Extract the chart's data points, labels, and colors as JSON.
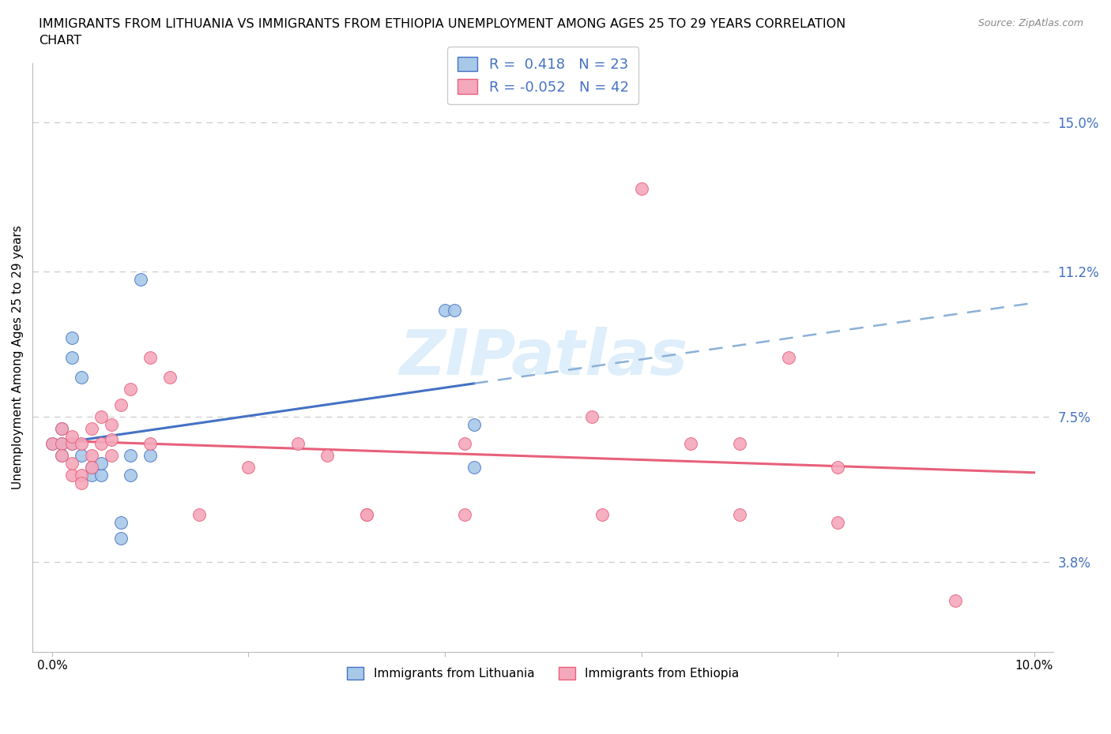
{
  "title": "IMMIGRANTS FROM LITHUANIA VS IMMIGRANTS FROM ETHIOPIA UNEMPLOYMENT AMONG AGES 25 TO 29 YEARS CORRELATION\nCHART",
  "source": "Source: ZipAtlas.com",
  "ylabel": "Unemployment Among Ages 25 to 29 years",
  "xlim": [
    -0.002,
    0.102
  ],
  "ylim": [
    0.015,
    0.165
  ],
  "ytick_vals": [
    0.038,
    0.075,
    0.112,
    0.15
  ],
  "ytick_labels": [
    "3.8%",
    "7.5%",
    "11.2%",
    "15.0%"
  ],
  "xtick_vals": [
    0.0,
    0.02,
    0.04,
    0.06,
    0.08,
    0.1
  ],
  "xtick_labels": [
    "0.0%",
    "",
    "",
    "",
    "",
    "10.0%"
  ],
  "r_lithuania": 0.418,
  "n_lithuania": 23,
  "r_ethiopia": -0.052,
  "n_ethiopia": 42,
  "color_lithuania": "#a8c8e8",
  "color_ethiopia": "#f4a8bc",
  "line_color_lithuania": "#4472c4",
  "line_color_ethiopia": "#e8607a",
  "dashed_color": "#8ab0d8",
  "watermark_color": "#d0e8f8",
  "lithuania_x": [
    0.0,
    0.001,
    0.001,
    0.001,
    0.002,
    0.002,
    0.002,
    0.003,
    0.003,
    0.004,
    0.004,
    0.005,
    0.005,
    0.007,
    0.007,
    0.008,
    0.008,
    0.009,
    0.01,
    0.04,
    0.041,
    0.043,
    0.043
  ],
  "lithuania_y": [
    0.068,
    0.072,
    0.068,
    0.065,
    0.095,
    0.09,
    0.068,
    0.085,
    0.065,
    0.06,
    0.062,
    0.06,
    0.063,
    0.048,
    0.044,
    0.06,
    0.065,
    0.11,
    0.065,
    0.102,
    0.102,
    0.073,
    0.062
  ],
  "ethiopia_x": [
    0.0,
    0.001,
    0.001,
    0.001,
    0.002,
    0.002,
    0.002,
    0.002,
    0.003,
    0.003,
    0.003,
    0.004,
    0.004,
    0.004,
    0.005,
    0.005,
    0.006,
    0.006,
    0.006,
    0.007,
    0.008,
    0.01,
    0.01,
    0.012,
    0.015,
    0.02,
    0.025,
    0.028,
    0.032,
    0.032,
    0.042,
    0.042,
    0.055,
    0.056,
    0.06,
    0.065,
    0.07,
    0.07,
    0.075,
    0.08,
    0.08,
    0.092
  ],
  "ethiopia_y": [
    0.068,
    0.072,
    0.068,
    0.065,
    0.068,
    0.07,
    0.06,
    0.063,
    0.068,
    0.06,
    0.058,
    0.072,
    0.065,
    0.062,
    0.075,
    0.068,
    0.073,
    0.069,
    0.065,
    0.078,
    0.082,
    0.09,
    0.068,
    0.085,
    0.05,
    0.062,
    0.068,
    0.065,
    0.05,
    0.05,
    0.068,
    0.05,
    0.075,
    0.05,
    0.133,
    0.068,
    0.05,
    0.068,
    0.09,
    0.062,
    0.048,
    0.028
  ]
}
